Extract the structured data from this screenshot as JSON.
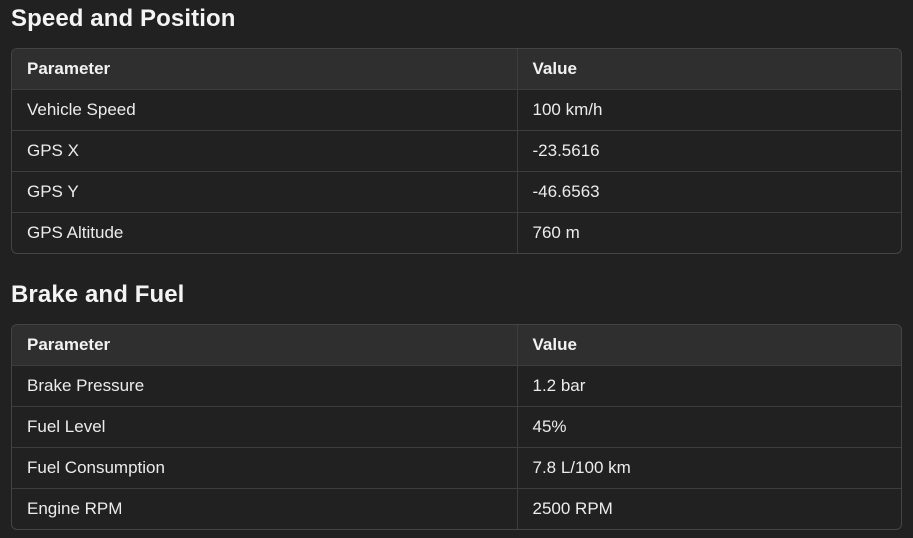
{
  "sections": [
    {
      "title": "Speed and Position",
      "headers": [
        "Parameter",
        "Value"
      ],
      "rows": [
        [
          "Vehicle Speed",
          "100 km/h"
        ],
        [
          "GPS X",
          "-23.5616"
        ],
        [
          "GPS Y",
          "-46.6563"
        ],
        [
          "GPS Altitude",
          "760 m"
        ]
      ]
    },
    {
      "title": "Brake and Fuel",
      "headers": [
        "Parameter",
        "Value"
      ],
      "rows": [
        [
          "Brake Pressure",
          "1.2 bar"
        ],
        [
          "Fuel Level",
          "45%"
        ],
        [
          "Fuel Consumption",
          "7.8 L/100 km"
        ],
        [
          "Engine RPM",
          "2500 RPM"
        ]
      ]
    }
  ]
}
